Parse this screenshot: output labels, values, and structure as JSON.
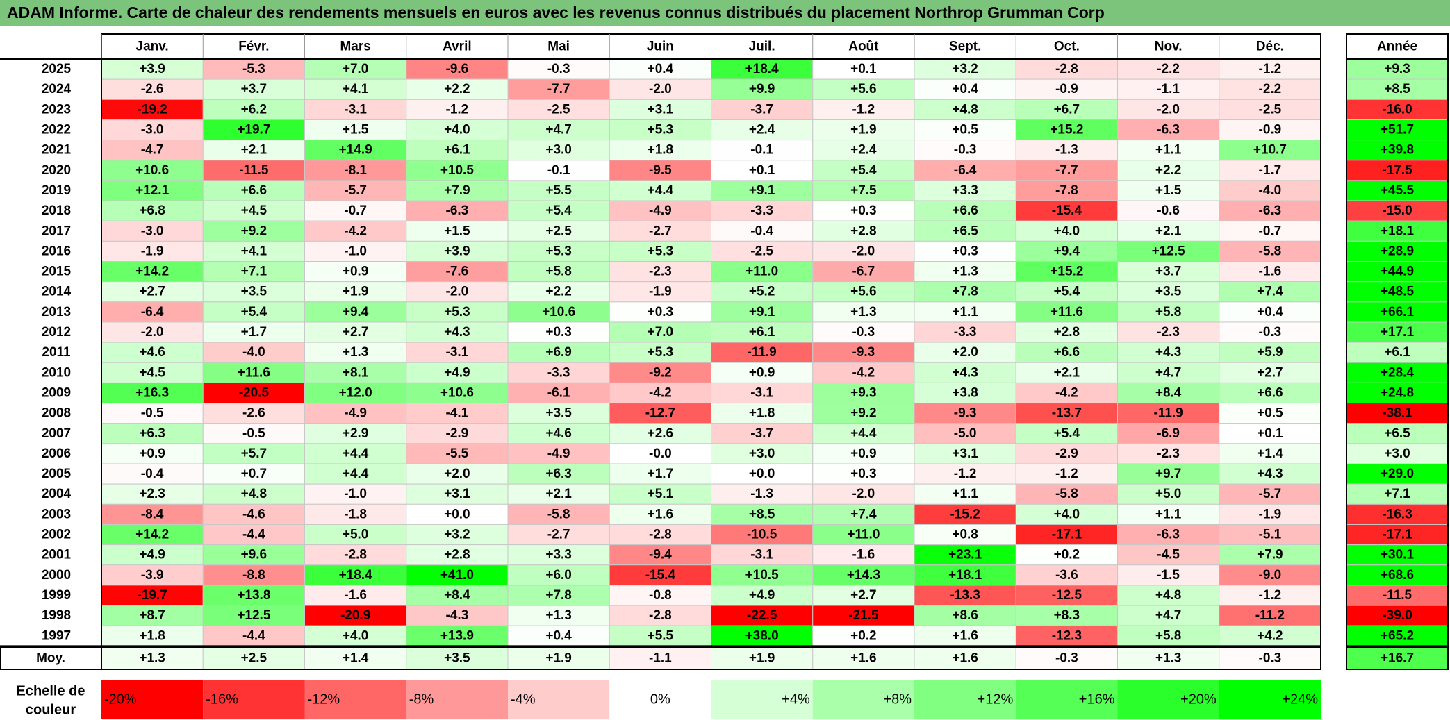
{
  "title": "ADAM Informe. Carte de chaleur des rendements mensuels en euros avec les revenus connus distribués du placement Northrop Grumman Corp",
  "chart_data": {
    "type": "heatmap",
    "months": [
      "Janv.",
      "Févr.",
      "Mars",
      "Avril",
      "Mai",
      "Juin",
      "Juil.",
      "Août",
      "Sept.",
      "Oct.",
      "Nov.",
      "Déc."
    ],
    "year_header": "Année",
    "years": [
      2025,
      2024,
      2023,
      2022,
      2021,
      2020,
      2019,
      2018,
      2017,
      2016,
      2015,
      2014,
      2013,
      2012,
      2011,
      2010,
      2009,
      2008,
      2007,
      2006,
      2005,
      2004,
      2003,
      2002,
      2001,
      2000,
      1999,
      1998,
      1997
    ],
    "values": [
      [
        3.9,
        -5.3,
        7.0,
        -9.6,
        -0.3,
        0.4,
        18.4,
        0.1,
        3.2,
        -2.8,
        -2.2,
        -1.2
      ],
      [
        -2.6,
        3.7,
        4.1,
        2.2,
        -7.7,
        -2.0,
        9.9,
        5.6,
        0.4,
        -0.9,
        -1.1,
        -2.2
      ],
      [
        -19.2,
        6.2,
        -3.1,
        -1.2,
        -2.5,
        3.1,
        -3.7,
        -1.2,
        4.8,
        6.7,
        -2.0,
        -2.5
      ],
      [
        -3.0,
        19.7,
        1.5,
        4.0,
        4.7,
        5.3,
        2.4,
        1.9,
        0.5,
        15.2,
        -6.3,
        -0.9
      ],
      [
        -4.7,
        2.1,
        14.9,
        6.1,
        3.0,
        1.8,
        -0.1,
        2.4,
        -0.3,
        -1.3,
        1.1,
        10.7
      ],
      [
        10.6,
        -11.5,
        -8.1,
        10.5,
        -0.1,
        -9.5,
        0.1,
        5.4,
        -6.4,
        -7.7,
        2.2,
        -1.7
      ],
      [
        12.1,
        6.6,
        -5.7,
        7.9,
        5.5,
        4.4,
        9.1,
        7.5,
        3.3,
        -7.8,
        1.5,
        -4.0
      ],
      [
        6.8,
        4.5,
        -0.7,
        -6.3,
        5.4,
        -4.9,
        -3.3,
        0.3,
        6.6,
        -15.4,
        -0.6,
        -6.3
      ],
      [
        -3.0,
        9.2,
        -4.2,
        1.5,
        2.5,
        -2.7,
        -0.4,
        2.8,
        6.5,
        4.0,
        2.1,
        -0.7
      ],
      [
        -1.9,
        4.1,
        -1.0,
        3.9,
        5.3,
        5.3,
        -2.5,
        -2.0,
        0.3,
        9.4,
        12.5,
        -5.8
      ],
      [
        14.2,
        7.1,
        0.9,
        -7.6,
        5.8,
        -2.3,
        11.0,
        -6.7,
        1.3,
        15.2,
        3.7,
        -1.6
      ],
      [
        2.7,
        3.5,
        1.9,
        -2.0,
        2.2,
        -1.9,
        5.2,
        5.6,
        7.8,
        5.4,
        3.5,
        7.4
      ],
      [
        -6.4,
        5.4,
        9.4,
        5.3,
        10.6,
        0.3,
        9.1,
        1.3,
        1.1,
        11.6,
        5.8,
        0.4
      ],
      [
        -2.0,
        1.7,
        2.7,
        4.3,
        0.3,
        7.0,
        6.1,
        -0.3,
        -3.3,
        2.8,
        -2.3,
        -0.3
      ],
      [
        4.6,
        -4.0,
        1.3,
        -3.1,
        6.9,
        5.3,
        -11.9,
        -9.3,
        2.0,
        6.6,
        4.3,
        5.9
      ],
      [
        4.5,
        11.6,
        8.1,
        4.9,
        -3.3,
        -9.2,
        0.9,
        -4.2,
        4.3,
        2.1,
        4.7,
        2.7
      ],
      [
        16.3,
        -20.5,
        12.0,
        10.6,
        -6.1,
        -4.2,
        -3.1,
        9.3,
        3.8,
        -4.2,
        8.4,
        6.6
      ],
      [
        -0.5,
        -2.6,
        -4.9,
        -4.1,
        3.5,
        -12.7,
        1.8,
        9.2,
        -9.3,
        -13.7,
        -11.9,
        0.5
      ],
      [
        6.3,
        -0.5,
        2.9,
        -2.9,
        4.6,
        2.6,
        -3.7,
        4.4,
        -5.0,
        5.4,
        -6.9,
        0.1
      ],
      [
        0.9,
        5.7,
        4.4,
        -5.5,
        -4.9,
        -0.0,
        3.0,
        0.9,
        3.1,
        -2.9,
        -2.3,
        1.4
      ],
      [
        -0.4,
        0.7,
        4.4,
        2.0,
        6.3,
        1.7,
        0.0,
        0.3,
        -1.2,
        -1.2,
        9.7,
        4.3
      ],
      [
        2.3,
        4.8,
        -1.0,
        3.1,
        2.1,
        5.1,
        -1.3,
        -2.0,
        1.1,
        -5.8,
        5.0,
        -5.7
      ],
      [
        -8.4,
        -4.6,
        -1.8,
        0.0,
        -5.8,
        1.6,
        8.5,
        7.4,
        -15.2,
        4.0,
        1.1,
        -1.9
      ],
      [
        14.2,
        -4.4,
        5.0,
        3.2,
        -2.7,
        -2.8,
        -10.5,
        11.0,
        0.8,
        -17.1,
        -6.3,
        -5.1
      ],
      [
        4.9,
        9.6,
        -2.8,
        2.8,
        3.3,
        -9.4,
        -3.1,
        -1.6,
        23.1,
        0.2,
        -4.5,
        7.9
      ],
      [
        -3.9,
        -8.8,
        18.4,
        41.0,
        6.0,
        -15.4,
        10.5,
        14.3,
        18.1,
        -3.6,
        -1.5,
        -9.0
      ],
      [
        -19.7,
        13.8,
        -1.6,
        8.4,
        7.8,
        -0.8,
        4.9,
        2.7,
        -13.3,
        -12.5,
        4.8,
        -1.2
      ],
      [
        8.7,
        12.5,
        -20.9,
        -4.3,
        1.3,
        -2.8,
        -22.5,
        -21.5,
        8.6,
        8.3,
        4.7,
        -11.2
      ],
      [
        1.8,
        -4.4,
        4.0,
        13.9,
        0.4,
        5.5,
        38.0,
        0.2,
        1.6,
        -12.3,
        5.8,
        4.2
      ]
    ],
    "year_totals": [
      9.3,
      8.5,
      -16.0,
      51.7,
      39.8,
      -17.5,
      45.5,
      -15.0,
      18.1,
      28.9,
      44.9,
      48.5,
      66.1,
      17.1,
      6.1,
      28.4,
      24.8,
      -38.1,
      6.5,
      3.0,
      29.0,
      7.1,
      -16.3,
      -17.1,
      30.1,
      68.6,
      -11.5,
      -39.0,
      65.2
    ],
    "average_label": "Moy.",
    "averages": [
      1.3,
      2.5,
      1.4,
      3.5,
      1.9,
      -1.1,
      1.9,
      1.6,
      1.6,
      -0.3,
      1.3,
      -0.3
    ],
    "average_total": 16.7,
    "scale_label": [
      "Echelle de",
      "couleur"
    ],
    "scale_values": [
      -20,
      -16,
      -12,
      -8,
      -4,
      0,
      4,
      8,
      12,
      16,
      20,
      24
    ],
    "scale_labels": [
      "-20%",
      "-16%",
      "-12%",
      "-8%",
      "-4%",
      "0%",
      "+4%",
      "+8%",
      "+12%",
      "+16%",
      "+20%",
      "+24%"
    ],
    "colors": {
      "negative": "#ff0000",
      "positive": "#00ff00",
      "neutral": "#ffffff",
      "title_bg": "#7cc47c"
    }
  }
}
